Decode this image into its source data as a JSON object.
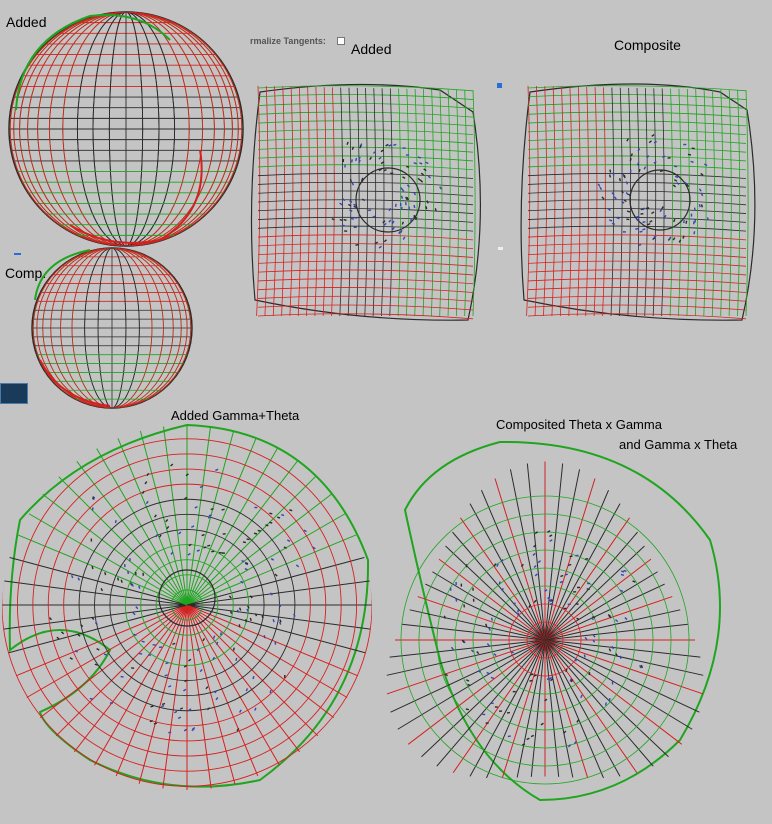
{
  "labels": {
    "top_left": "Added",
    "top_mid": "Added",
    "top_right": "Composite",
    "mid_left": "Comp.",
    "bottom_left": "Added   Gamma+Theta",
    "bottom_right_line1": "Composited   Theta x Gamma",
    "bottom_right_line2": "and Gamma x Theta"
  },
  "ui": {
    "normalize_tangents": "rmalize Tangents:",
    "normalize_tangents_checked": false
  },
  "colors": {
    "background": "#c4c4c4",
    "grid_dark": "#2b2b2b",
    "grid_green": "#1fa51f",
    "grid_red": "#d62020",
    "dots_blue": "#3546b8"
  }
}
